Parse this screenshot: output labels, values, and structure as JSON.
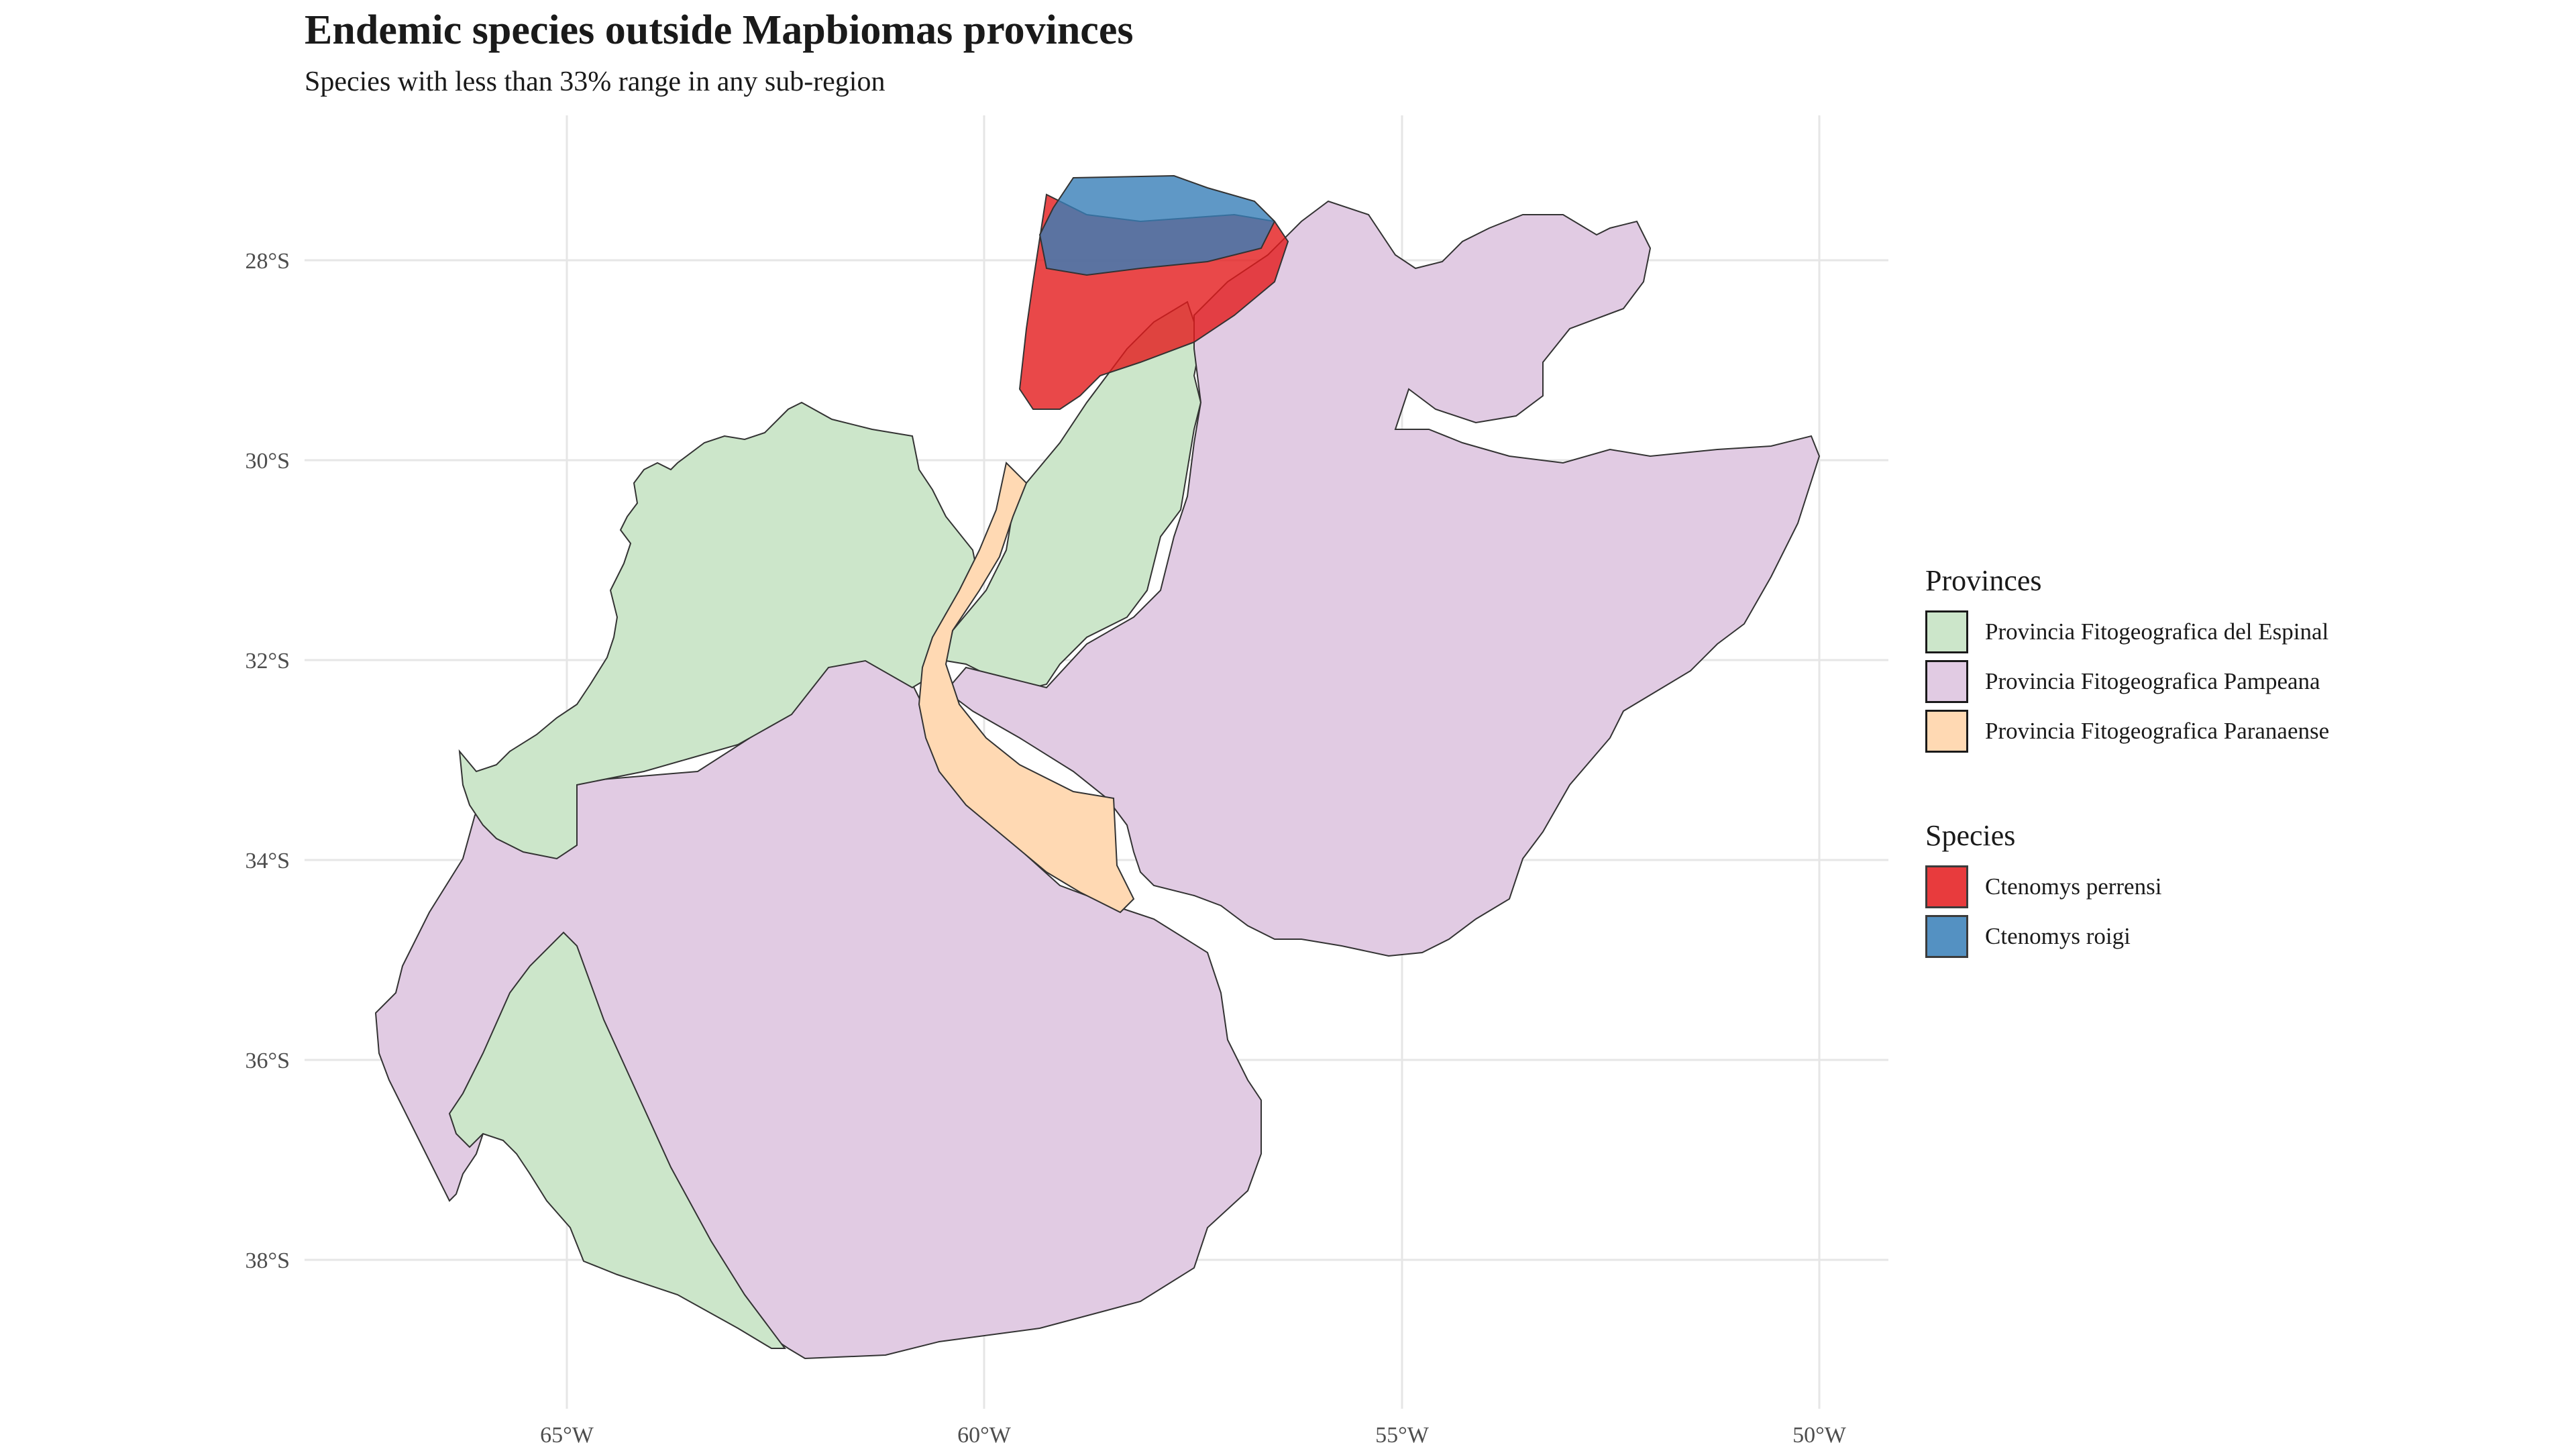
{
  "title": "Endemic species outside Mapbiomas provinces",
  "subtitle": "Species with less than 33% range in any sub-region",
  "axes": {
    "x_ticks": [
      "65°W",
      "60°W",
      "55°W",
      "50°W"
    ],
    "y_ticks": [
      "28°S",
      "30°S",
      "32°S",
      "34°S",
      "36°S",
      "38°S"
    ]
  },
  "legend_provinces": {
    "title": "Provinces",
    "items": [
      {
        "label": "Provincia Fitogeografica del Espinal",
        "color": "#CCE6CA"
      },
      {
        "label": "Provincia Fitogeografica Pampeana",
        "color": "#E1CBE3"
      },
      {
        "label": "Provincia Fitogeografica Paranaense",
        "color": "#FFD9B3"
      }
    ]
  },
  "legend_species": {
    "title": "Species",
    "items": [
      {
        "label": "Ctenomys perrensi",
        "color": "#E41A1C"
      },
      {
        "label": "Ctenomys roigi",
        "color": "#377EB8"
      }
    ]
  }
}
